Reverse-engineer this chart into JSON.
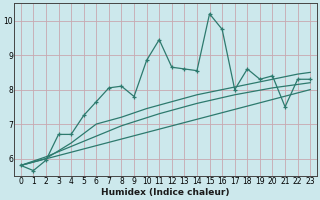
{
  "xlabel": "Humidex (Indice chaleur)",
  "bg_color": "#cce8ec",
  "grid_color": "#c8a8b0",
  "line_color": "#2d7a6e",
  "xlim": [
    -0.5,
    23.5
  ],
  "ylim": [
    5.5,
    10.5
  ],
  "yticks": [
    6,
    7,
    8,
    9,
    10
  ],
  "xticks": [
    0,
    1,
    2,
    3,
    4,
    5,
    6,
    7,
    8,
    9,
    10,
    11,
    12,
    13,
    14,
    15,
    16,
    17,
    18,
    19,
    20,
    21,
    22,
    23
  ],
  "line1_x": [
    0,
    1,
    2,
    3,
    4,
    5,
    6,
    7,
    8,
    9,
    10,
    11,
    12,
    13,
    14,
    15,
    16,
    17,
    18,
    19,
    20,
    21,
    22,
    23
  ],
  "line1_y": [
    5.8,
    5.65,
    5.95,
    6.7,
    6.7,
    7.25,
    7.65,
    8.05,
    8.1,
    7.8,
    8.85,
    9.45,
    8.65,
    8.6,
    8.55,
    10.2,
    9.75,
    8.0,
    8.6,
    8.3,
    8.4,
    7.5,
    8.3,
    8.3
  ],
  "line2_x": [
    0,
    2,
    4,
    6,
    8,
    10,
    12,
    14,
    16,
    18,
    20,
    22,
    23
  ],
  "line2_y": [
    5.8,
    6.0,
    6.45,
    7.0,
    7.2,
    7.45,
    7.65,
    7.85,
    8.0,
    8.15,
    8.3,
    8.45,
    8.5
  ],
  "line3_x": [
    0,
    2,
    5,
    8,
    11,
    14,
    17,
    20,
    23
  ],
  "line3_y": [
    5.8,
    6.05,
    6.5,
    6.95,
    7.3,
    7.6,
    7.85,
    8.05,
    8.2
  ],
  "line4_x": [
    0,
    23
  ],
  "line4_y": [
    5.8,
    8.0
  ]
}
